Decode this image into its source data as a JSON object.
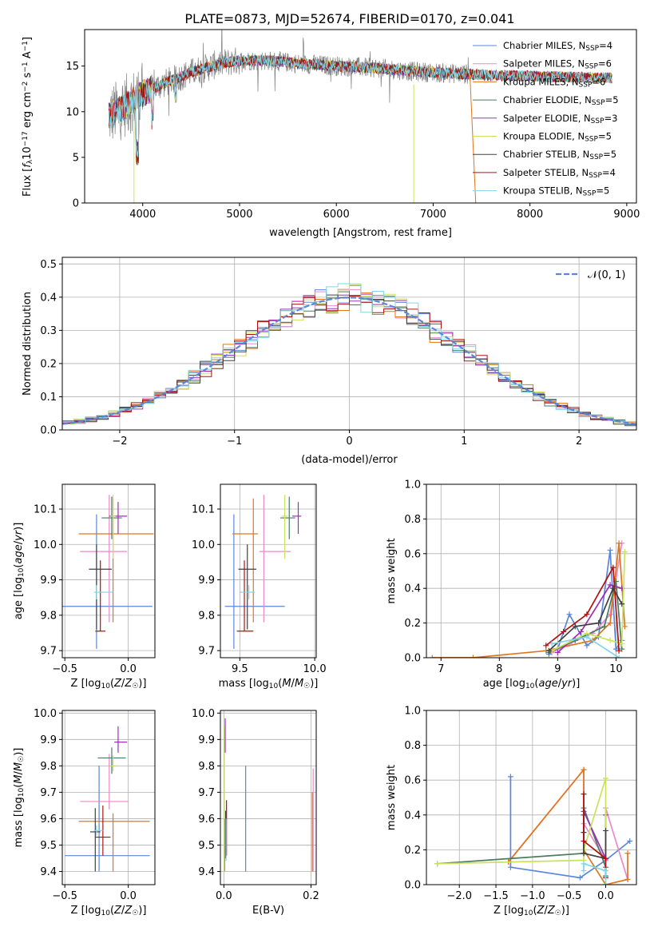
{
  "title": "PLATE=0873, MJD=52674, FIBERID=0170, z=0.041",
  "colors": {
    "chabrier_miles": "#5b86d9",
    "salpeter_miles": "#e98acb",
    "kroupa_miles": "#e0761c",
    "chabrier_elodie": "#4b7a5f",
    "salpeter_elodie": "#9b30b5",
    "kroupa_elodie": "#c9e35b",
    "chabrier_stelib": "#404040",
    "salpeter_stelib": "#b01010",
    "kroupa_stelib": "#7fd6e6",
    "gaussian": "#5b86d9"
  },
  "chart_data": [
    {
      "id": "spectrum",
      "type": "line",
      "xlabel": "wavelength [Angstrom, rest frame]",
      "ylabel": "Flux [f_λ10^-17 erg cm^-2 s^-1 A^-1]",
      "xlim": [
        3400,
        9100
      ],
      "ylim": [
        0,
        19
      ],
      "xticks": [
        "4000",
        "5000",
        "6000",
        "7000",
        "8000",
        "9000"
      ],
      "yticks": [
        "0",
        "5",
        "10",
        "15"
      ],
      "legend_position": "top-right",
      "legend": [
        {
          "label": "Chabrier MILES, N",
          "sub": "SSP",
          "value": "=4"
        },
        {
          "label": "Salpeter MILES, N",
          "sub": "SSP",
          "value": "=6"
        },
        {
          "label": "Kroupa MILES, N",
          "sub": "SSP",
          "value": "=6"
        },
        {
          "label": "Chabrier ELODIE, N",
          "sub": "SSP",
          "value": "=5"
        },
        {
          "label": "Salpeter ELODIE, N",
          "sub": "SSP",
          "value": "=3"
        },
        {
          "label": "Kroupa ELODIE, N",
          "sub": "SSP",
          "value": "=5"
        },
        {
          "label": "Chabrier STELIB, N",
          "sub": "SSP",
          "value": "=5"
        },
        {
          "label": "Salpeter STELIB, N",
          "sub": "SSP",
          "value": "=4"
        },
        {
          "label": "Kroupa STELIB, N",
          "sub": "SSP",
          "value": "=5"
        }
      ],
      "continuum": {
        "x": [
          3650,
          3800,
          4000,
          4200,
          4500,
          4800,
          5000,
          5300,
          5600,
          6000,
          6400,
          6800,
          7200,
          7600,
          8000,
          8400,
          8800
        ],
        "y": [
          9.5,
          10.5,
          12.0,
          13.0,
          14.3,
          15.3,
          15.6,
          15.6,
          15.3,
          15.0,
          14.8,
          14.4,
          14.2,
          14.0,
          13.9,
          13.8,
          13.7
        ]
      },
      "observed_x_range": [
        3650,
        7400
      ],
      "model_x_range": [
        3650,
        8850
      ]
    },
    {
      "id": "residuals",
      "type": "line",
      "xlabel": "(data-model)/error",
      "ylabel": "Normed distribution",
      "xlim": [
        -2.5,
        2.5
      ],
      "ylim": [
        0,
        0.52
      ],
      "xticks": [
        "−2",
        "−1",
        "0",
        "1",
        "2"
      ],
      "yticks": [
        "0.0",
        "0.1",
        "0.2",
        "0.3",
        "0.4",
        "0.5"
      ],
      "legend_position": "top-right",
      "gaussian_label": "𝒩(0, 1)",
      "bin_width": 0.1
    },
    {
      "id": "age_vs_Z",
      "type": "scatter",
      "xlabel": "Z [log10(Z/Z☉)]",
      "ylabel": "age  [log10(age/yr)]",
      "xlim": [
        -0.52,
        0.21
      ],
      "ylim": [
        9.68,
        10.17
      ],
      "xticks": [
        "−0.5",
        "0.0"
      ],
      "yticks": [
        "9.7",
        "9.8",
        "9.9",
        "10.0",
        "10.1"
      ],
      "points": [
        {
          "model": "chabrier_miles",
          "x": -0.25,
          "xerr": [
            0.27,
            0.44
          ],
          "y": 9.825,
          "yerr": [
            0.12,
            0.26
          ]
        },
        {
          "model": "salpeter_miles",
          "x": -0.15,
          "xerr": [
            0.23,
            0.14
          ],
          "y": 9.98,
          "yerr": [
            0.2,
            0.16
          ]
        },
        {
          "model": "kroupa_miles",
          "x": -0.12,
          "xerr": [
            0.27,
            0.32
          ],
          "y": 10.03,
          "yerr": [
            0.25,
            0.1
          ]
        },
        {
          "model": "chabrier_elodie",
          "x": -0.13,
          "xerr": [
            0.08,
            0.08
          ],
          "y": 10.075,
          "yerr": [
            0.06,
            0.06
          ]
        },
        {
          "model": "salpeter_elodie",
          "x": -0.08,
          "xerr": [
            0.07,
            0.07
          ],
          "y": 10.08,
          "yerr": [
            0.05,
            0.04
          ]
        },
        {
          "model": "kroupa_elodie",
          "x": -0.12,
          "xerr": [
            0.02,
            0.02
          ],
          "y": 10.08,
          "yerr": [
            0.12,
            0.06
          ]
        },
        {
          "model": "chabrier_stelib",
          "x": -0.25,
          "xerr": [
            0.06,
            0.12
          ],
          "y": 9.93,
          "yerr": [
            0.17,
            0.07
          ]
        },
        {
          "model": "salpeter_stelib",
          "x": -0.22,
          "xerr": [
            0.04,
            0.04
          ],
          "y": 9.755,
          "yerr": [
            0.0,
            0.2
          ]
        },
        {
          "model": "kroupa_stelib",
          "x": -0.25,
          "xerr": [
            0.02,
            0.13
          ],
          "y": 9.865,
          "yerr": [
            0.02,
            0.02
          ]
        }
      ]
    },
    {
      "id": "age_vs_mass",
      "type": "scatter",
      "xlabel": "mass [log10(M/M☉)]",
      "ylabel": "",
      "xlim": [
        9.37,
        10.01
      ],
      "ylim": [
        9.68,
        10.17
      ],
      "xticks": [
        "9.5",
        "10.0"
      ],
      "yticks": [
        "9.7",
        "9.8",
        "9.9",
        "10.0",
        "10.1"
      ],
      "points": [
        {
          "model": "chabrier_miles",
          "x": 9.46,
          "xerr": [
            0.06,
            0.34
          ],
          "y": 9.825,
          "yerr": [
            0.12,
            0.26
          ]
        },
        {
          "model": "salpeter_miles",
          "x": 9.66,
          "xerr": [
            0.03,
            0.18
          ],
          "y": 9.98,
          "yerr": [
            0.2,
            0.16
          ]
        },
        {
          "model": "kroupa_miles",
          "x": 9.59,
          "xerr": [
            0.14,
            0.03
          ],
          "y": 10.03,
          "yerr": [
            0.25,
            0.1
          ]
        },
        {
          "model": "chabrier_elodie",
          "x": 9.83,
          "xerr": [
            0.06,
            0.04
          ],
          "y": 10.075,
          "yerr": [
            0.06,
            0.06
          ]
        },
        {
          "model": "salpeter_elodie",
          "x": 9.89,
          "xerr": [
            0.04,
            0.02
          ],
          "y": 10.08,
          "yerr": [
            0.05,
            0.04
          ]
        },
        {
          "model": "kroupa_elodie",
          "x": 9.8,
          "xerr": [
            0.02,
            0.02
          ],
          "y": 10.08,
          "yerr": [
            0.12,
            0.06
          ]
        },
        {
          "model": "chabrier_stelib",
          "x": 9.55,
          "xerr": [
            0.06,
            0.06
          ],
          "y": 9.93,
          "yerr": [
            0.17,
            0.07
          ]
        },
        {
          "model": "salpeter_stelib",
          "x": 9.53,
          "xerr": [
            0.05,
            0.06
          ],
          "y": 9.755,
          "yerr": [
            0.0,
            0.2
          ]
        },
        {
          "model": "kroupa_stelib",
          "x": 9.56,
          "xerr": [
            0.06,
            0.04
          ],
          "y": 9.865,
          "yerr": [
            0.02,
            0.02
          ]
        }
      ]
    },
    {
      "id": "mass_weight_vs_age",
      "type": "line",
      "xlabel": "age  [log10(age/yr)]",
      "ylabel": "mass weight",
      "xlim": [
        6.75,
        10.35
      ],
      "ylim": [
        0,
        1.0
      ],
      "xticks": [
        "7",
        "8",
        "9",
        "10"
      ],
      "yticks": [
        "0.0",
        "0.2",
        "0.4",
        "0.6",
        "0.8",
        "1.0"
      ],
      "series": [
        {
          "model": "chabrier_miles",
          "x": [
            8.85,
            9.0,
            9.2,
            9.5,
            9.7,
            9.9,
            10.0,
            10.1
          ],
          "y": [
            0.02,
            0.05,
            0.25,
            0.07,
            0.12,
            0.62,
            0.05,
            0.1
          ]
        },
        {
          "model": "salpeter_miles",
          "x": [
            8.9,
            9.2,
            9.6,
            9.9,
            10.1
          ],
          "y": [
            0.03,
            0.08,
            0.14,
            0.25,
            0.66
          ]
        },
        {
          "model": "kroupa_miles",
          "x": [
            6.85,
            7.55,
            8.8,
            9.6,
            9.9,
            10.05,
            10.15
          ],
          "y": [
            0.0,
            0.0,
            0.04,
            0.1,
            0.2,
            0.66,
            0.18
          ]
        },
        {
          "model": "chabrier_elodie",
          "x": [
            8.85,
            9.3,
            9.8,
            10.0,
            10.1
          ],
          "y": [
            0.03,
            0.1,
            0.18,
            0.44,
            0.05
          ]
        },
        {
          "model": "salpeter_elodie",
          "x": [
            9.0,
            9.4,
            9.9,
            10.1
          ],
          "y": [
            0.03,
            0.15,
            0.42,
            0.4
          ]
        },
        {
          "model": "kroupa_elodie",
          "x": [
            8.9,
            9.5,
            9.9,
            10.1,
            10.15
          ],
          "y": [
            0.04,
            0.14,
            0.1,
            0.08,
            0.61
          ]
        },
        {
          "model": "chabrier_stelib",
          "x": [
            8.85,
            9.3,
            9.7,
            9.95,
            10.1
          ],
          "y": [
            0.04,
            0.18,
            0.2,
            0.4,
            0.31
          ]
        },
        {
          "model": "salpeter_stelib",
          "x": [
            8.8,
            9.1,
            9.5,
            9.95,
            10.05
          ],
          "y": [
            0.07,
            0.15,
            0.25,
            0.52,
            0.04
          ]
        },
        {
          "model": "kroupa_stelib",
          "x": [
            8.9,
            9.5,
            10.05
          ],
          "y": [
            0.08,
            0.12,
            0.0
          ]
        }
      ]
    },
    {
      "id": "mass_vs_Z",
      "type": "scatter",
      "xlabel": "Z [log10(Z/Z☉)]",
      "ylabel": "mass [log10(M/M☉)]",
      "xlim": [
        -0.52,
        0.21
      ],
      "ylim": [
        9.35,
        10.01
      ],
      "xticks": [
        "−0.5",
        "0.0"
      ],
      "yticks": [
        "9.4",
        "9.5",
        "9.6",
        "9.7",
        "9.8",
        "9.9",
        "10.0"
      ],
      "points": [
        {
          "model": "chabrier_miles",
          "x": -0.23,
          "xerr": [
            0.27,
            0.4
          ],
          "y": 9.46,
          "yerr": [
            0.06,
            0.34
          ]
        },
        {
          "model": "salpeter_miles",
          "x": -0.15,
          "xerr": [
            0.23,
            0.15
          ],
          "y": 9.665,
          "yerr": [
            0.03,
            0.18
          ]
        },
        {
          "model": "kroupa_miles",
          "x": -0.12,
          "xerr": [
            0.27,
            0.29
          ],
          "y": 9.59,
          "yerr": [
            0.19,
            0.03
          ]
        },
        {
          "model": "chabrier_elodie",
          "x": -0.13,
          "xerr": [
            0.11,
            0.11
          ],
          "y": 9.83,
          "yerr": [
            0.06,
            0.04
          ]
        },
        {
          "model": "salpeter_elodie",
          "x": -0.08,
          "xerr": [
            0.03,
            0.07
          ],
          "y": 9.89,
          "yerr": [
            0.04,
            0.06
          ]
        },
        {
          "model": "kroupa_elodie",
          "x": -0.12,
          "xerr": [
            0.02,
            0.03
          ],
          "y": 9.8,
          "yerr": [
            0.02,
            0.04
          ]
        },
        {
          "model": "chabrier_stelib",
          "x": -0.26,
          "xerr": [
            0.04,
            0.04
          ],
          "y": 9.55,
          "yerr": [
            0.15,
            0.09
          ]
        },
        {
          "model": "salpeter_stelib",
          "x": -0.2,
          "xerr": [
            0.06,
            0.06
          ],
          "y": 9.53,
          "yerr": [
            0.07,
            0.12
          ]
        },
        {
          "model": "kroupa_stelib",
          "x": -0.25,
          "xerr": [
            0.02,
            0.05
          ],
          "y": 9.555,
          "yerr": [
            0.02,
            0.02
          ]
        }
      ]
    },
    {
      "id": "mass_vs_ebv",
      "type": "scatter",
      "xlabel": "E(B-V)",
      "ylabel": "",
      "xlim": [
        -0.008,
        0.212
      ],
      "ylim": [
        9.35,
        10.01
      ],
      "xticks": [
        "0.0",
        "0.2"
      ],
      "yticks": [
        "9.4",
        "9.5",
        "9.6",
        "9.7",
        "9.8",
        "9.9",
        "10.0"
      ],
      "points": [
        {
          "model": "chabrier_miles",
          "x": 0.05,
          "y": 9.6,
          "yerr": [
            0.2,
            0.2
          ]
        },
        {
          "model": "salpeter_miles",
          "x": 0.205,
          "y": 9.6,
          "yerr": [
            0.2,
            0.19
          ]
        },
        {
          "model": "kroupa_miles",
          "x": 0.203,
          "y": 9.56,
          "yerr": [
            0.16,
            0.14
          ]
        },
        {
          "model": "chabrier_elodie",
          "x": 0.002,
          "y": 9.55,
          "yerr": [
            0.15,
            0.05
          ]
        },
        {
          "model": "salpeter_elodie",
          "x": 0.003,
          "y": 9.9,
          "yerr": [
            0.05,
            0.08
          ]
        },
        {
          "model": "kroupa_elodie",
          "x": 0.001,
          "y": 9.8,
          "yerr": [
            0.4,
            0.15
          ]
        },
        {
          "model": "chabrier_stelib",
          "x": 0.004,
          "y": 9.55,
          "yerr": [
            0.1,
            0.08
          ]
        },
        {
          "model": "salpeter_stelib",
          "x": 0.006,
          "y": 9.55,
          "yerr": [
            0.09,
            0.12
          ]
        },
        {
          "model": "kroupa_stelib",
          "x": 0.005,
          "y": 9.5,
          "yerr": [
            0.06,
            0.1
          ]
        }
      ]
    },
    {
      "id": "mass_weight_vs_Z",
      "type": "line",
      "xlabel": "Z [log10(Z/Z☉)]",
      "ylabel": "mass weight",
      "xlim": [
        -2.45,
        0.42
      ],
      "ylim": [
        0,
        1.0
      ],
      "xticks": [
        "−2.0",
        "−1.5",
        "−1.0",
        "−0.5",
        "0.0"
      ],
      "yticks": [
        "0.0",
        "0.2",
        "0.4",
        "0.6",
        "0.8",
        "1.0"
      ],
      "series": [
        {
          "model": "chabrier_miles",
          "x": [
            -1.3,
            -1.3,
            -0.35,
            0.0,
            0.33
          ],
          "y": [
            0.62,
            0.1,
            0.04,
            0.14,
            0.25
          ]
        },
        {
          "model": "salpeter_miles",
          "x": [
            -1.33,
            -0.3,
            -0.3,
            0.0,
            0.0,
            0.3
          ],
          "y": [
            0.13,
            0.66,
            0.35,
            0.14,
            0.44,
            0.03
          ]
        },
        {
          "model": "kroupa_miles",
          "x": [
            -1.33,
            -0.3,
            -0.3,
            0.0,
            0.3,
            0.3
          ],
          "y": [
            0.13,
            0.66,
            0.2,
            0.0,
            0.03,
            0.18
          ]
        },
        {
          "model": "chabrier_elodie",
          "x": [
            -2.3,
            -0.3,
            -0.3,
            0.0,
            0.0
          ],
          "y": [
            0.12,
            0.18,
            0.44,
            0.1,
            0.05
          ]
        },
        {
          "model": "salpeter_elodie",
          "x": [
            -0.3,
            -0.3,
            0.0,
            0.0
          ],
          "y": [
            0.42,
            0.42,
            0.15,
            0.4
          ]
        },
        {
          "model": "kroupa_elodie",
          "x": [
            -2.3,
            -0.3,
            -0.3,
            0.0,
            0.0,
            0.0
          ],
          "y": [
            0.12,
            0.14,
            0.2,
            0.61,
            0.08,
            0.61
          ]
        },
        {
          "model": "chabrier_stelib",
          "x": [
            -0.3,
            -0.3,
            -0.3,
            0.0,
            0.0
          ],
          "y": [
            0.4,
            0.3,
            0.18,
            0.15,
            0.31
          ]
        },
        {
          "model": "salpeter_stelib",
          "x": [
            -0.3,
            -0.3,
            0.0,
            0.0
          ],
          "y": [
            0.52,
            0.25,
            0.15,
            0.04
          ]
        },
        {
          "model": "kroupa_stelib",
          "x": [
            -0.3,
            -0.3,
            0.0,
            0.0
          ],
          "y": [
            0.08,
            0.12,
            0.08,
            0.0
          ]
        }
      ]
    }
  ]
}
